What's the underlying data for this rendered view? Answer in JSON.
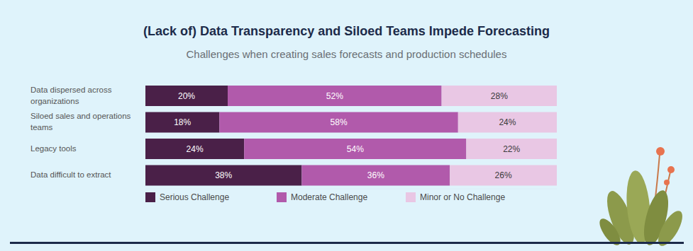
{
  "chart_data": {
    "type": "bar",
    "title": "(Lack of) Data Transparency and Siloed Teams Impede Forecasting",
    "subtitle": "Challenges when creating sales forecasts and production schedules",
    "orientation": "horizontal",
    "stacked": true,
    "data_labels": true,
    "legend": "bottom",
    "tick_labels": "y",
    "grid": false,
    "categories": [
      "Data dispersed across organizations",
      "Siloed sales and operations teams",
      "Legacy tools",
      "Data difficult to extract"
    ],
    "xlim": [
      0,
      100
    ],
    "series": [
      {
        "name": "Serious Challenge",
        "color": "#4a2048",
        "values": [
          20,
          18,
          24,
          38
        ],
        "value_labels": [
          "20%",
          "18%",
          "24%",
          "38%"
        ]
      },
      {
        "name": "Moderate Challenge",
        "color": "#b15aab",
        "values": [
          52,
          58,
          54,
          36
        ],
        "value_labels": [
          "52%",
          "58%",
          "54%",
          "36%"
        ]
      },
      {
        "name": "Minor or No Challenge",
        "color": "#e9c7e4",
        "values": [
          28,
          24,
          22,
          26
        ],
        "value_labels": [
          "28%",
          "24%",
          "22%",
          "26%"
        ]
      }
    ]
  }
}
